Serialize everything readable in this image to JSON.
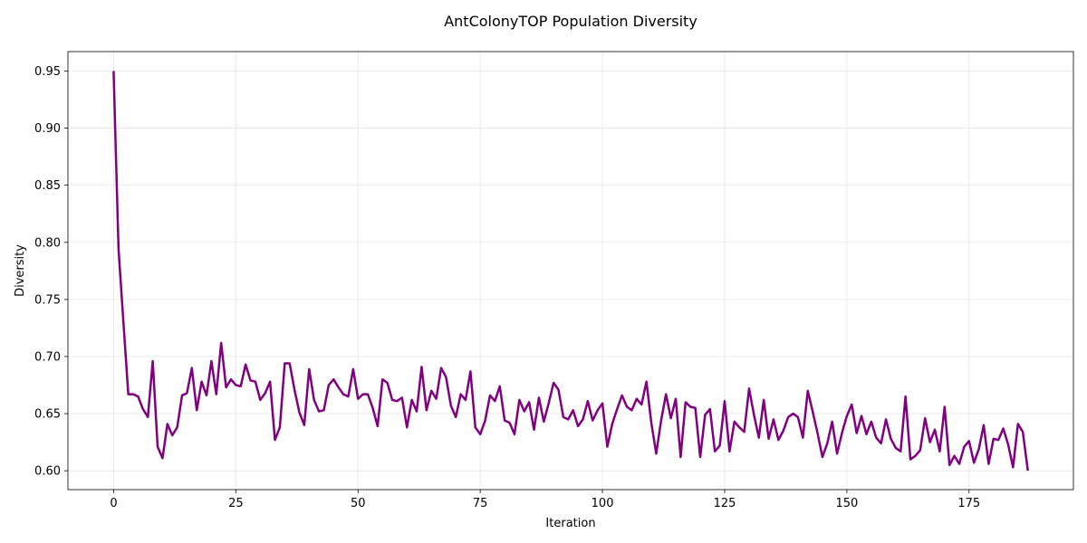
{
  "chart_data": {
    "type": "line",
    "title": "AntColonyTOP Population Diversity",
    "xlabel": "Iteration",
    "ylabel": "Diversity",
    "xlim": [
      -9.35,
      196.35
    ],
    "ylim": [
      0.5835,
      0.967
    ],
    "xticks": [
      0,
      25,
      50,
      75,
      100,
      125,
      150,
      175
    ],
    "yticks": [
      0.6,
      0.65,
      0.7,
      0.75,
      0.8,
      0.85,
      0.9,
      0.95
    ],
    "ytick_labels": [
      "0.60",
      "0.65",
      "0.70",
      "0.75",
      "0.80",
      "0.85",
      "0.90",
      "0.95"
    ],
    "grid": true,
    "series": [
      {
        "color": "#800080",
        "x_start": 0,
        "x_step": 1,
        "values": [
          0.949,
          0.794,
          0.73,
          0.667,
          0.667,
          0.665,
          0.654,
          0.647,
          0.696,
          0.621,
          0.611,
          0.641,
          0.631,
          0.638,
          0.666,
          0.668,
          0.69,
          0.653,
          0.678,
          0.666,
          0.696,
          0.667,
          0.712,
          0.673,
          0.68,
          0.675,
          0.674,
          0.693,
          0.679,
          0.678,
          0.662,
          0.668,
          0.678,
          0.627,
          0.638,
          0.694,
          0.694,
          0.671,
          0.651,
          0.64,
          0.689,
          0.662,
          0.652,
          0.653,
          0.675,
          0.68,
          0.673,
          0.667,
          0.665,
          0.689,
          0.663,
          0.667,
          0.667,
          0.655,
          0.639,
          0.68,
          0.677,
          0.662,
          0.661,
          0.664,
          0.638,
          0.662,
          0.652,
          0.691,
          0.653,
          0.67,
          0.663,
          0.69,
          0.682,
          0.657,
          0.647,
          0.667,
          0.662,
          0.687,
          0.638,
          0.632,
          0.644,
          0.666,
          0.661,
          0.674,
          0.644,
          0.642,
          0.632,
          0.662,
          0.652,
          0.66,
          0.636,
          0.664,
          0.643,
          0.659,
          0.677,
          0.671,
          0.647,
          0.645,
          0.653,
          0.639,
          0.645,
          0.661,
          0.644,
          0.653,
          0.659,
          0.621,
          0.641,
          0.654,
          0.666,
          0.656,
          0.653,
          0.663,
          0.658,
          0.678,
          0.642,
          0.615,
          0.644,
          0.667,
          0.646,
          0.663,
          0.612,
          0.66,
          0.656,
          0.655,
          0.612,
          0.649,
          0.654,
          0.617,
          0.622,
          0.661,
          0.617,
          0.643,
          0.638,
          0.634,
          0.672,
          0.649,
          0.629,
          0.662,
          0.628,
          0.645,
          0.627,
          0.635,
          0.647,
          0.65,
          0.647,
          0.629,
          0.67,
          0.652,
          0.633,
          0.612,
          0.624,
          0.643,
          0.615,
          0.633,
          0.648,
          0.658,
          0.633,
          0.648,
          0.632,
          0.643,
          0.629,
          0.624,
          0.645,
          0.628,
          0.62,
          0.617,
          0.665,
          0.61,
          0.613,
          0.618,
          0.646,
          0.625,
          0.636,
          0.617,
          0.656,
          0.605,
          0.613,
          0.606,
          0.621,
          0.626,
          0.607,
          0.619,
          0.64,
          0.606,
          0.628,
          0.627,
          0.637,
          0.623,
          0.603,
          0.641,
          0.634,
          0.601
        ]
      }
    ]
  }
}
